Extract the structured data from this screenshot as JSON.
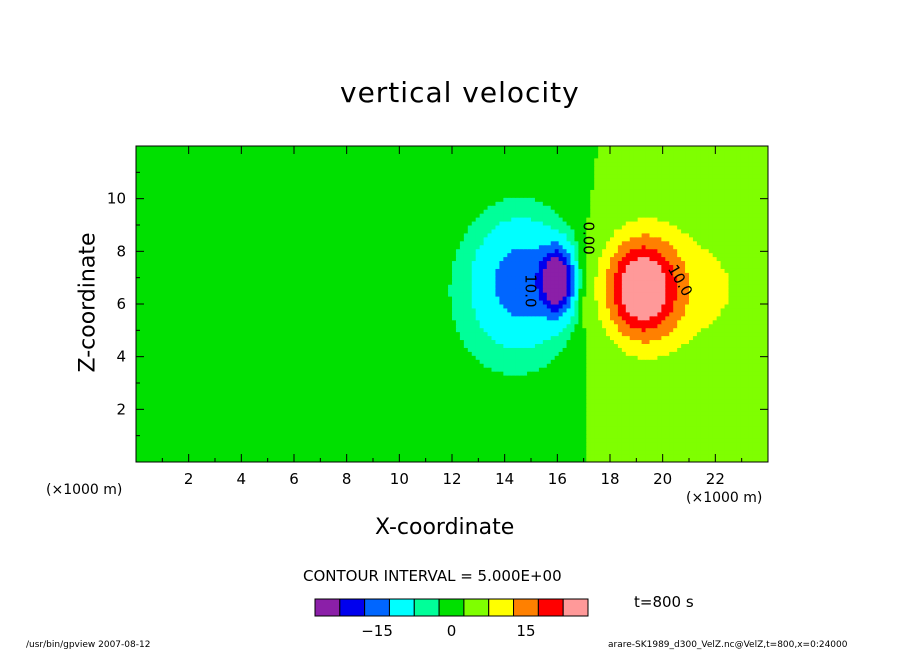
{
  "chart_data": {
    "type": "contour",
    "title": "vertical velocity",
    "xlabel": "X-coordinate",
    "ylabel": "Z-coordinate",
    "x_unit": "(×1000 m)",
    "y_unit": "(×1000 m)",
    "xlim": [
      0,
      24
    ],
    "ylim": [
      0,
      12
    ],
    "x_ticks": [
      2,
      4,
      6,
      8,
      10,
      12,
      14,
      16,
      18,
      20,
      22
    ],
    "y_ticks": [
      2,
      4,
      6,
      8,
      10
    ],
    "contour_interval_label": "CONTOUR INTERVAL = 5.000E+00",
    "time_label": "t=800 s",
    "contour_labels": [
      {
        "text": "0.00",
        "x": 17.0,
        "y": 8.5,
        "rotate": 90
      },
      {
        "text": "10.0",
        "x": 20.5,
        "y": 6.8,
        "rotate": 60
      },
      {
        "text": "10.0",
        "x": 14.8,
        "y": 6.5,
        "rotate": 90
      }
    ],
    "colorbar": {
      "colors": [
        "#8b1fa8",
        "#0000ee",
        "#0066ff",
        "#00ffff",
        "#00ff99",
        "#00e000",
        "#7fff00",
        "#ffff00",
        "#ff8000",
        "#ff0000",
        "#ff9999"
      ],
      "ticks": [
        {
          "value": -15,
          "label": "−15"
        },
        {
          "value": 0,
          "label": "0"
        },
        {
          "value": 15,
          "label": "15"
        }
      ]
    },
    "updraft_center": {
      "x": 19.2,
      "z": 6.6,
      "max": 25
    },
    "downdraft_center": {
      "x": 16.0,
      "z": 6.8,
      "min": -25
    }
  },
  "footer": {
    "left": "/usr/bin/gpview   2007-08-12",
    "right": "arare-SK1989_d300_VelZ.nc@VelZ,t=800,x=0:24000"
  }
}
